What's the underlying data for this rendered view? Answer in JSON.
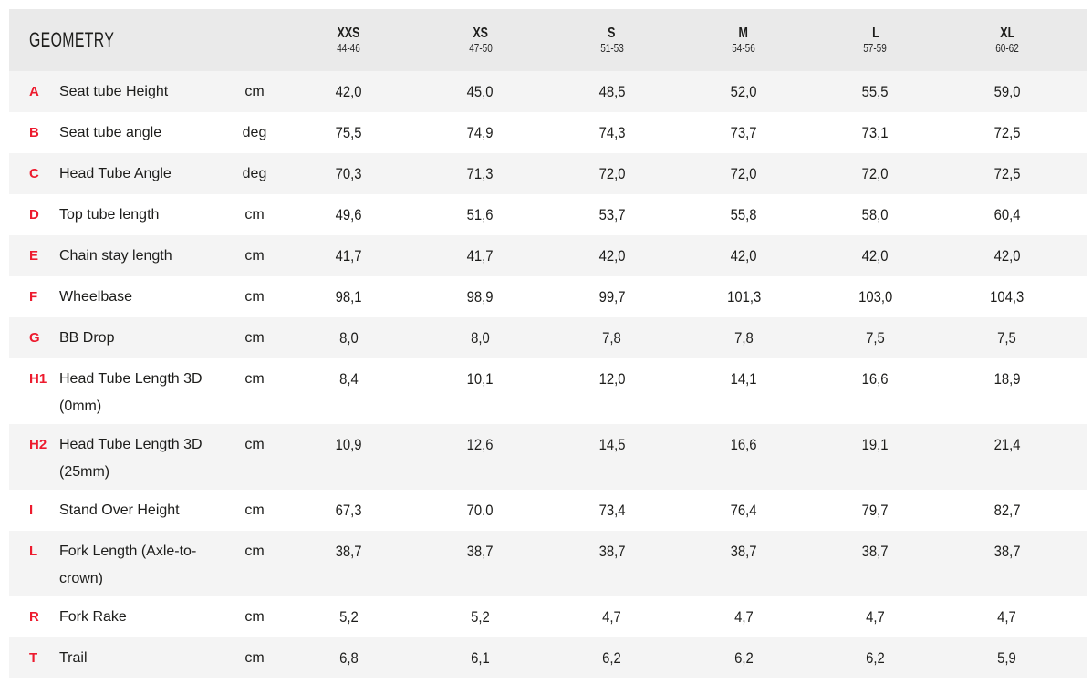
{
  "colors": {
    "accent_red": "#ed1b2e",
    "header_bg": "#eaeaea",
    "row_alt_bg": "#f4f4f4",
    "text": "#1d1d1b"
  },
  "chart_data": {
    "type": "table",
    "title": "GEOMETRY",
    "columns": [
      {
        "size": "XXS",
        "range": "44-46"
      },
      {
        "size": "XS",
        "range": "47-50"
      },
      {
        "size": "S",
        "range": "51-53"
      },
      {
        "size": "M",
        "range": "54-56"
      },
      {
        "size": "L",
        "range": "57-59"
      },
      {
        "size": "XL",
        "range": "60-62"
      }
    ],
    "rows": [
      {
        "key": "A",
        "label": "Seat tube Height",
        "unit": "cm",
        "values": [
          "42,0",
          "45,0",
          "48,5",
          "52,0",
          "55,5",
          "59,0"
        ]
      },
      {
        "key": "B",
        "label": "Seat tube angle",
        "unit": "deg",
        "values": [
          "75,5",
          "74,9",
          "74,3",
          "73,7",
          "73,1",
          "72,5"
        ]
      },
      {
        "key": "C",
        "label": "Head Tube Angle",
        "unit": "deg",
        "values": [
          "70,3",
          "71,3",
          "72,0",
          "72,0",
          "72,0",
          "72,5"
        ]
      },
      {
        "key": "D",
        "label": "Top tube length",
        "unit": "cm",
        "values": [
          "49,6",
          "51,6",
          "53,7",
          "55,8",
          "58,0",
          "60,4"
        ]
      },
      {
        "key": "E",
        "label": "Chain stay length",
        "unit": "cm",
        "values": [
          "41,7",
          "41,7",
          "42,0",
          "42,0",
          "42,0",
          "42,0"
        ]
      },
      {
        "key": "F",
        "label": "Wheelbase",
        "unit": "cm",
        "values": [
          "98,1",
          "98,9",
          "99,7",
          "101,3",
          "103,0",
          "104,3"
        ]
      },
      {
        "key": "G",
        "label": "BB Drop",
        "unit": "cm",
        "values": [
          "8,0",
          "8,0",
          "7,8",
          "7,8",
          "7,5",
          "7,5"
        ]
      },
      {
        "key": "H1",
        "label": "Head Tube Length 3D (0mm)",
        "unit": "cm",
        "values": [
          "8,4",
          "10,1",
          "12,0",
          "14,1",
          "16,6",
          "18,9"
        ]
      },
      {
        "key": "H2",
        "label": "Head Tube Length 3D (25mm)",
        "unit": "cm",
        "values": [
          "10,9",
          "12,6",
          "14,5",
          "16,6",
          "19,1",
          "21,4"
        ]
      },
      {
        "key": "I",
        "label": "Stand Over Height",
        "unit": "cm",
        "values": [
          "67,3",
          "70.0",
          "73,4",
          "76,4",
          "79,7",
          "82,7"
        ]
      },
      {
        "key": "L",
        "label": "Fork Length (Axle-to-crown)",
        "unit": "cm",
        "values": [
          "38,7",
          "38,7",
          "38,7",
          "38,7",
          "38,7",
          "38,7"
        ]
      },
      {
        "key": "R",
        "label": "Fork Rake",
        "unit": "cm",
        "values": [
          "5,2",
          "5,2",
          "4,7",
          "4,7",
          "4,7",
          "4,7"
        ]
      },
      {
        "key": "T",
        "label": "Trail",
        "unit": "cm",
        "values": [
          "6,8",
          "6,1",
          "6,2",
          "6,2",
          "6,2",
          "5,9"
        ]
      }
    ]
  }
}
